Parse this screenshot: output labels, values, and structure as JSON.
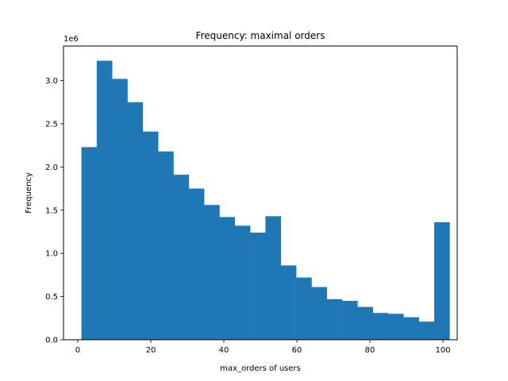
{
  "chart_data": {
    "type": "bar",
    "title": "Frequency: maximal orders",
    "xlabel": "max_orders of users",
    "ylabel": "Frequency",
    "y_offset_label": "1e6",
    "xlim": [
      -3.9,
      103.9
    ],
    "ylim": [
      0,
      3.4
    ],
    "x_ticks": [
      0,
      20,
      40,
      60,
      80,
      100
    ],
    "y_ticks": [
      0.0,
      0.5,
      1.0,
      1.5,
      2.0,
      2.5,
      3.0
    ],
    "x_tick_labels": [
      "0",
      "20",
      "40",
      "60",
      "80",
      "100"
    ],
    "y_tick_labels": [
      "0.0",
      "0.5",
      "1.0",
      "1.5",
      "2.0",
      "2.5",
      "3.0"
    ],
    "bin_edges": [
      1.0,
      5.2,
      9.4,
      13.6,
      17.8,
      22.0,
      26.2,
      30.4,
      34.6,
      38.8,
      43.0,
      47.2,
      51.4,
      55.6,
      59.8,
      64.0,
      68.2,
      72.4,
      76.6,
      80.8,
      85.0,
      89.2,
      93.4,
      97.6,
      101.8
    ],
    "values": [
      2.23,
      3.23,
      3.02,
      2.75,
      2.41,
      2.18,
      1.91,
      1.75,
      1.56,
      1.42,
      1.32,
      1.24,
      1.43,
      0.86,
      0.72,
      0.61,
      0.47,
      0.45,
      0.38,
      0.31,
      0.3,
      0.26,
      0.21,
      1.36
    ],
    "bar_color": "#1f77b4",
    "grid": false
  }
}
